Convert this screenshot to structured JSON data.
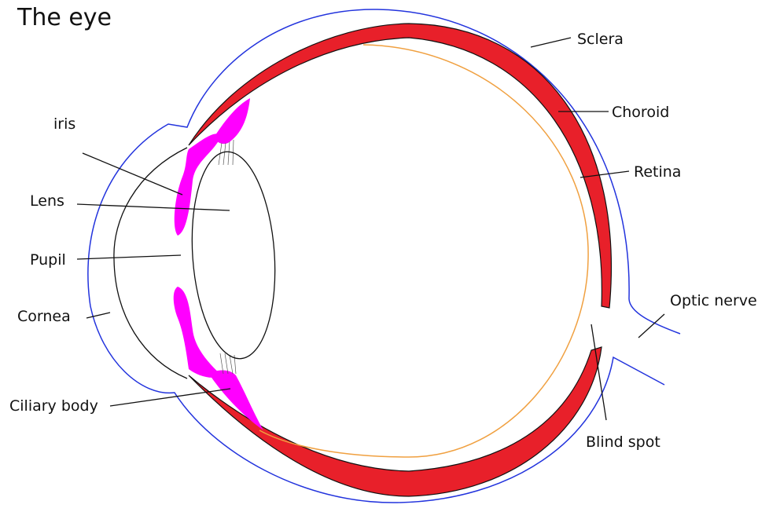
{
  "title": "The eye",
  "labels": [
    "Sclera",
    "Choroid",
    "Retina",
    "iris",
    "Lens",
    "Pupil",
    "Cornea",
    "Ciliary body",
    "Optic nerve",
    "Blind spot"
  ]
}
